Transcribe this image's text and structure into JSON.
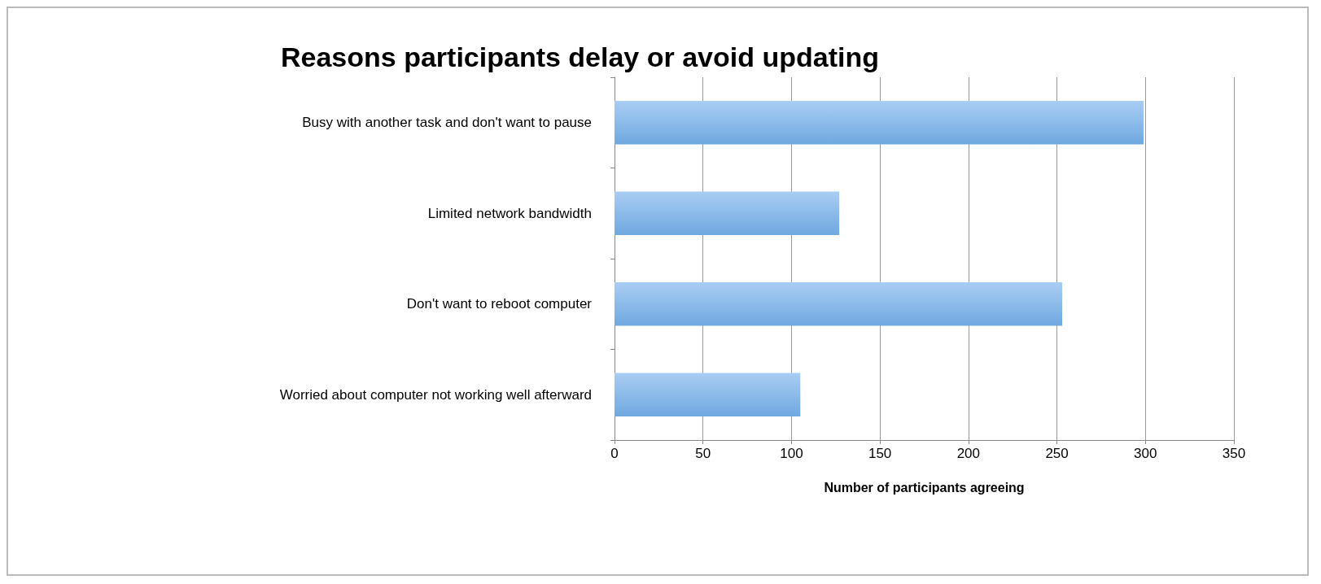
{
  "chart_data": {
    "type": "bar",
    "orientation": "horizontal",
    "title": "Reasons participants delay or avoid updating",
    "xlabel": "Number of participants agreeing",
    "categories": [
      "Busy with another task and don't want to pause",
      "Limited network bandwidth",
      "Don't want to reboot computer",
      "Worried about computer not working well afterward"
    ],
    "values": [
      299,
      127,
      253,
      105
    ],
    "color": "#6fa8e0",
    "xlim": [
      0,
      350
    ],
    "xticks": [
      0,
      50,
      100,
      150,
      200,
      250,
      300,
      350
    ],
    "grid": "x"
  }
}
